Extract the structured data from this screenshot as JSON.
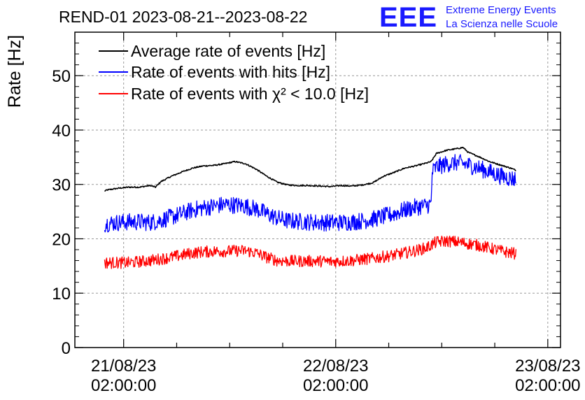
{
  "logo": {
    "letters": "EEE",
    "line1": "Extreme Energy Events",
    "line2": "La Scienza nelle Scuole",
    "color": "#1a1aff"
  },
  "chart_data": {
    "type": "line",
    "title": "REND-01 2023-08-21--2023-08-22",
    "ylabel": "Rate [Hz]",
    "xlabel": "",
    "ylim": [
      0,
      58
    ],
    "xlim": [
      -4.6,
      41.2
    ],
    "x_unit": "hours since 21/08/23 02:00:00",
    "yticks": [
      0,
      10,
      20,
      30,
      40,
      50
    ],
    "xticks": [
      {
        "x": 0,
        "date": "21/08/23",
        "time": "02:00:00"
      },
      {
        "x": 20,
        "date": "22/08/23",
        "time": "02:00:00"
      },
      {
        "x": 40,
        "date": "23/08/23",
        "time": "02:00:00"
      }
    ],
    "grid": true,
    "legend_position": "top-left",
    "series": [
      {
        "name": "Average rate of events [Hz]",
        "color": "#000000",
        "noise": 0.12,
        "x": [
          -1.8,
          -1.5,
          -0.5,
          0.5,
          1.5,
          2.5,
          3.0,
          3.5,
          4.5,
          5.5,
          6.5,
          7.5,
          8.5,
          9.5,
          10.5,
          11.5,
          12.5,
          13.5,
          14.5,
          15.5,
          16.5,
          17.5,
          18.5,
          19.5,
          20.5,
          21.5,
          22.5,
          23.5,
          24.5,
          25.5,
          26.5,
          27.5,
          28.5,
          29.0,
          29.5,
          30.5,
          31.5,
          32.0,
          32.5,
          33.5,
          34.5,
          35.5,
          36.5,
          37.0
        ],
        "y": [
          28.8,
          29.0,
          29.3,
          29.5,
          29.5,
          29.8,
          29.5,
          30.5,
          31.5,
          32.3,
          33.0,
          33.4,
          33.5,
          33.8,
          34.2,
          33.8,
          32.8,
          31.5,
          30.4,
          29.9,
          29.8,
          29.8,
          29.7,
          29.6,
          29.8,
          29.7,
          29.9,
          30.3,
          31.5,
          32.2,
          33.0,
          33.4,
          33.9,
          34.2,
          35.7,
          36.3,
          36.6,
          36.8,
          35.9,
          35.1,
          34.2,
          33.6,
          33.0,
          32.6
        ]
      },
      {
        "name": "Rate of events with hits [Hz]",
        "color": "#0000ff",
        "noise": 1.6,
        "x": [
          -1.8,
          -0.5,
          0.5,
          1.5,
          2.5,
          3.5,
          4.5,
          5.5,
          6.5,
          7.5,
          8.5,
          9.5,
          10.5,
          11.5,
          12.5,
          13.5,
          14.5,
          15.5,
          16.5,
          17.5,
          18.5,
          19.5,
          20.5,
          21.5,
          22.5,
          23.5,
          24.5,
          25.5,
          26.5,
          27.5,
          28.5,
          29.0,
          29.1,
          29.5,
          30.5,
          31.5,
          32.5,
          33.5,
          34.5,
          35.5,
          36.5,
          37.0
        ],
        "y": [
          22.8,
          23.0,
          23.1,
          23.1,
          23.0,
          23.4,
          24.0,
          24.6,
          25.3,
          25.7,
          26.0,
          26.3,
          26.2,
          26.0,
          25.5,
          24.6,
          23.8,
          23.3,
          23.2,
          23.1,
          23.0,
          23.0,
          23.0,
          23.1,
          23.3,
          23.6,
          24.1,
          24.6,
          25.3,
          25.8,
          26.1,
          26.4,
          32.3,
          33.2,
          33.8,
          34.0,
          33.6,
          33.0,
          32.3,
          31.6,
          31.1,
          31.0
        ]
      },
      {
        "name": "Rate of events with χ² < 10.0 [Hz]",
        "color": "#ff0000",
        "noise": 1.1,
        "x": [
          -1.8,
          -0.5,
          0.5,
          1.5,
          2.5,
          3.5,
          4.5,
          5.5,
          6.5,
          7.5,
          8.5,
          9.5,
          10.5,
          11.5,
          12.5,
          13.5,
          14.5,
          15.5,
          16.5,
          17.5,
          18.5,
          19.5,
          20.5,
          21.5,
          22.5,
          23.5,
          24.5,
          25.5,
          26.5,
          27.5,
          28.5,
          29.5,
          30.5,
          31.5,
          32.5,
          33.5,
          34.5,
          35.5,
          36.5,
          37.0
        ],
        "y": [
          15.6,
          15.6,
          15.6,
          15.8,
          16.0,
          16.3,
          16.6,
          17.0,
          17.4,
          17.6,
          17.7,
          17.7,
          17.8,
          17.8,
          17.4,
          16.6,
          16.0,
          15.9,
          15.9,
          15.9,
          15.9,
          15.8,
          15.9,
          16.0,
          16.2,
          16.4,
          16.7,
          17.0,
          17.4,
          17.8,
          18.3,
          19.4,
          19.6,
          19.4,
          19.1,
          18.8,
          18.3,
          17.8,
          17.4,
          17.3
        ]
      }
    ]
  }
}
